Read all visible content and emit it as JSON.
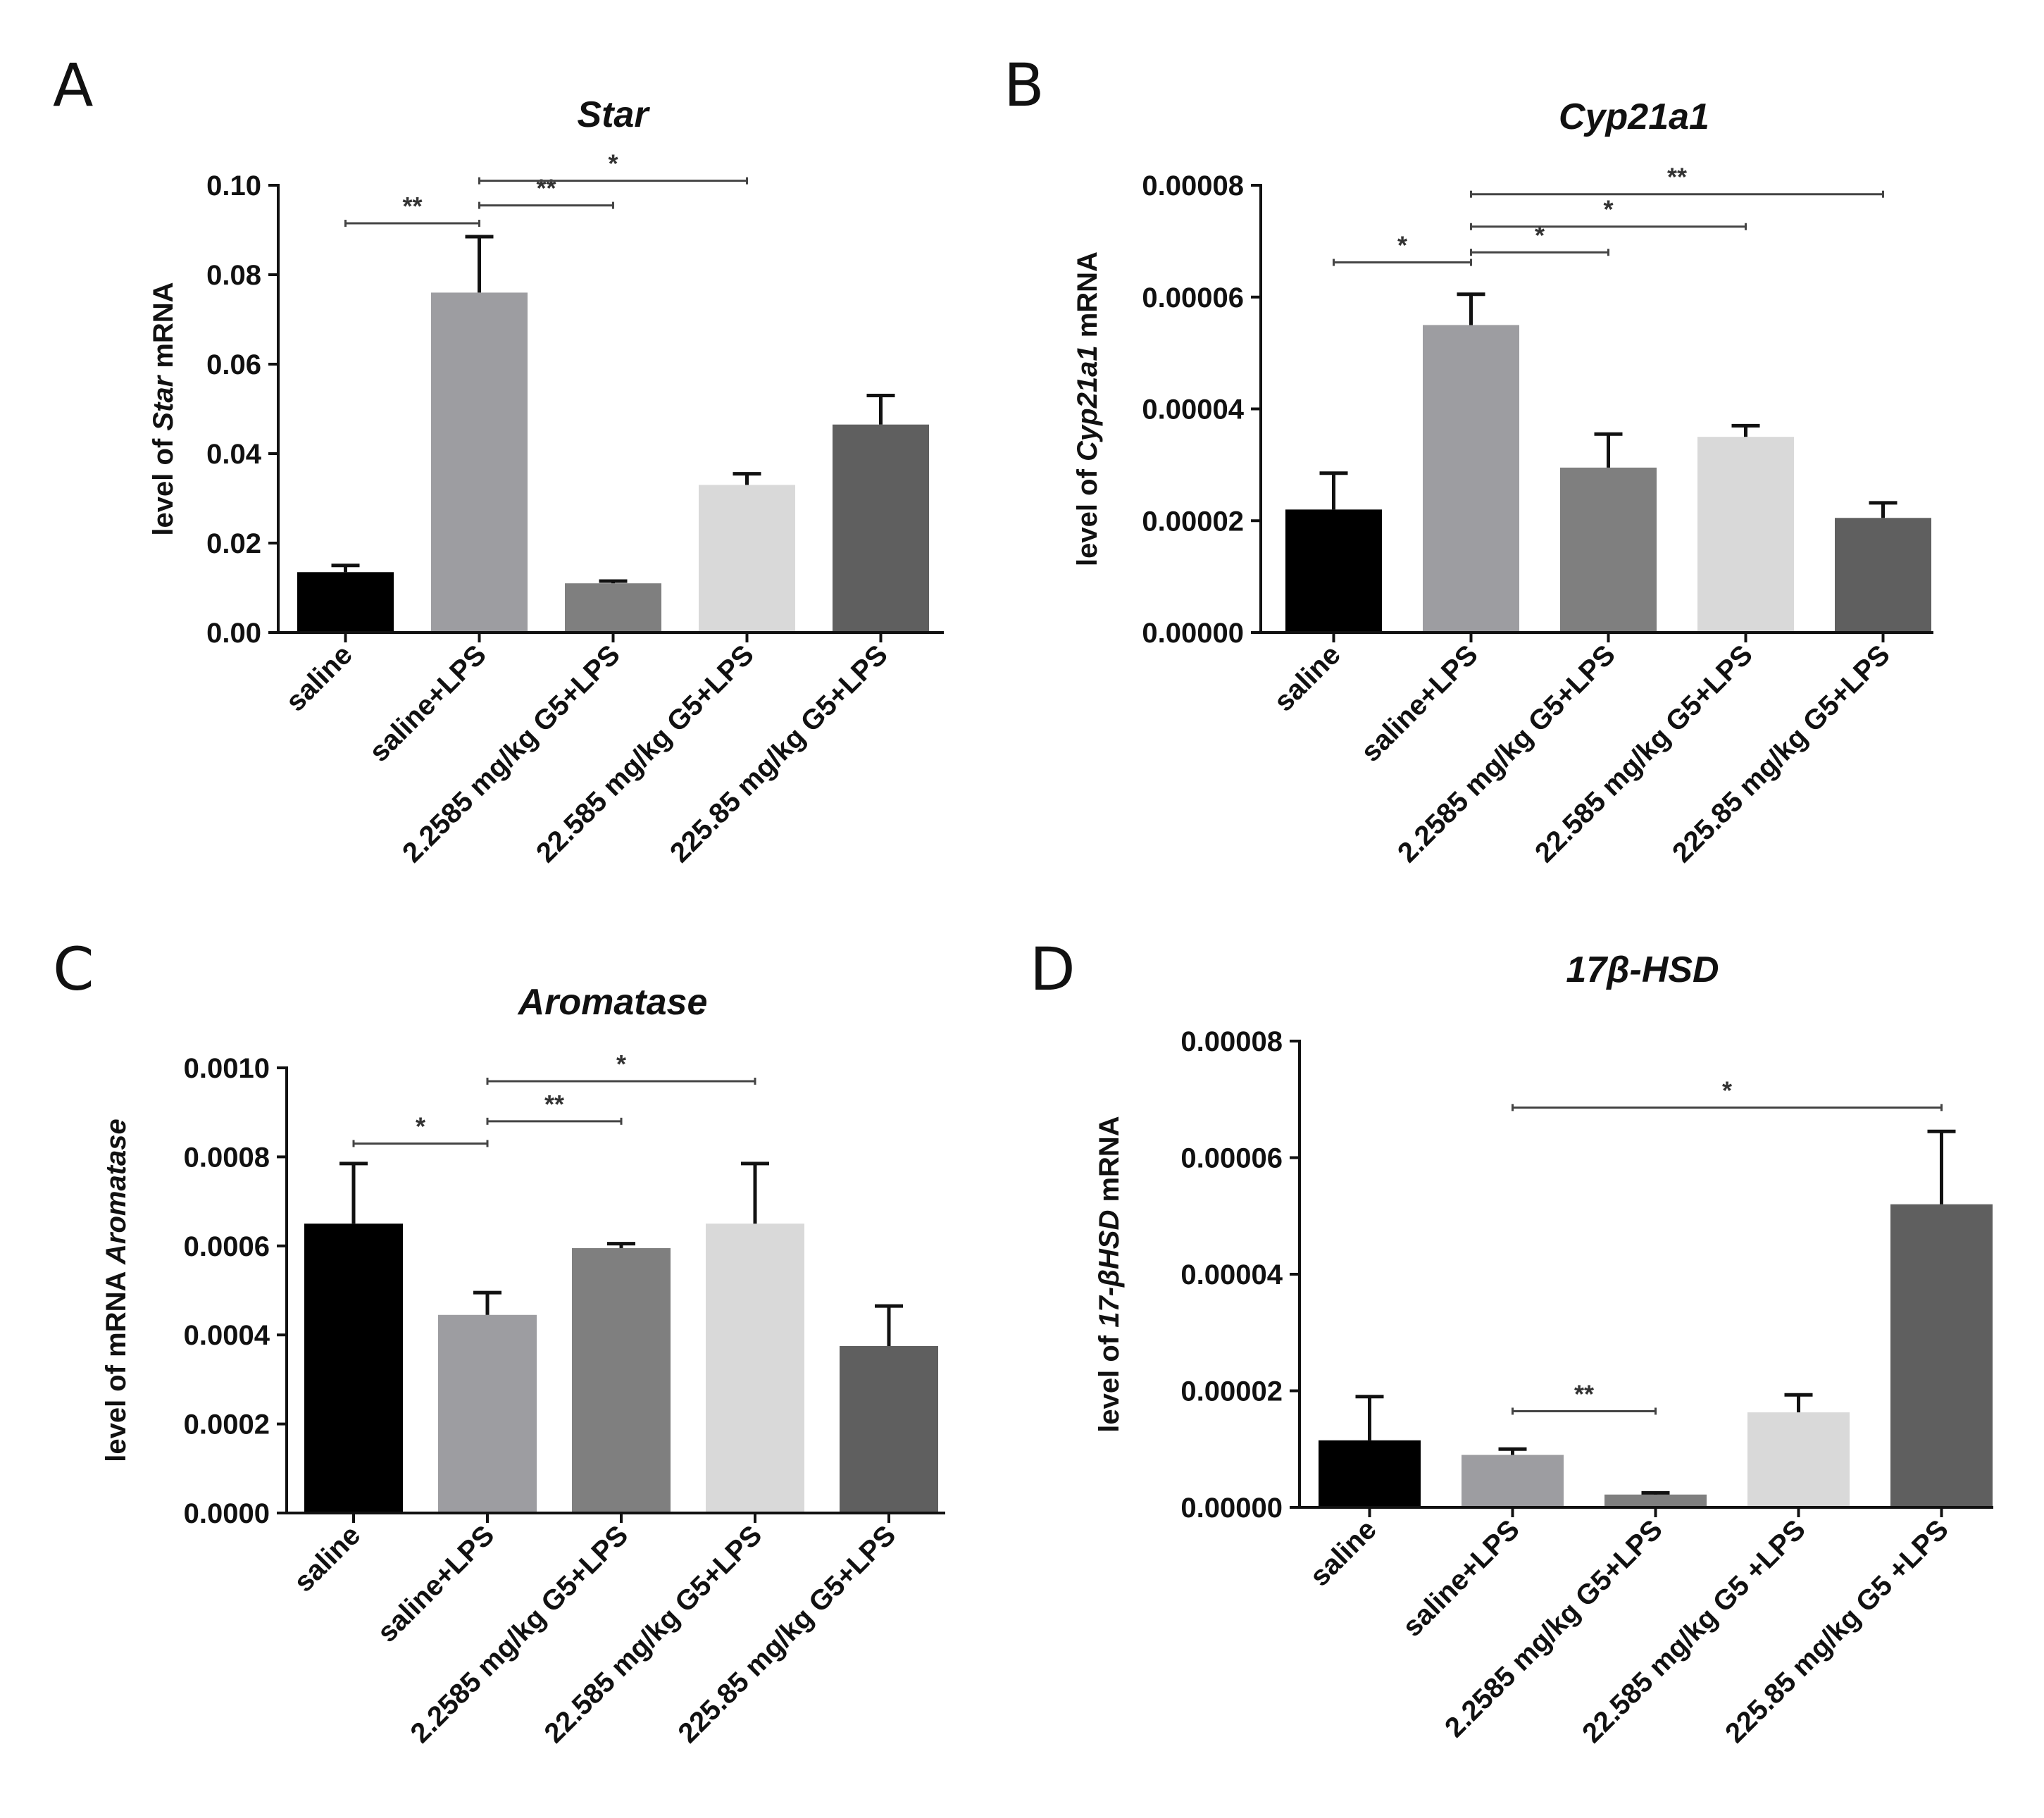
{
  "chart_data": [
    {
      "panel": "A",
      "type": "bar",
      "title": "Star",
      "ylabel_parts": [
        {
          "text": "level of ",
          "italic": false
        },
        {
          "text": "Star",
          "italic": true
        },
        {
          "text": " mRNA",
          "italic": false
        }
      ],
      "ylim": [
        0,
        0.1
      ],
      "yticks": [
        0.0,
        0.02,
        0.04,
        0.06,
        0.08,
        0.1
      ],
      "ytick_labels": [
        "0.00",
        "0.02",
        "0.04",
        "0.06",
        "0.08",
        "0.10"
      ],
      "categories": [
        "saline",
        "saline+LPS",
        "2.2585 mg/kg G5+LPS",
        "22.585 mg/kg G5+LPS",
        "225.85 mg/kg G5+LPS"
      ],
      "values": [
        0.0135,
        0.076,
        0.011,
        0.033,
        0.0465
      ],
      "errors": [
        0.0015,
        0.0125,
        0.0005,
        0.0025,
        0.0065
      ],
      "bar_colors": [
        "#000000",
        "#9d9da1",
        "#7f7f7f",
        "#d9d9d9",
        "#5f5f5f"
      ],
      "significance": [
        {
          "from": 0,
          "to": 1,
          "label": "**",
          "y": 0.0915
        },
        {
          "from": 1,
          "to": 2,
          "label": "**",
          "y": 0.0955
        },
        {
          "from": 1,
          "to": 3,
          "label": "*",
          "y": 0.101
        }
      ]
    },
    {
      "panel": "B",
      "type": "bar",
      "title": "Cyp21a1",
      "ylabel_parts": [
        {
          "text": "level of ",
          "italic": false
        },
        {
          "text": "Cyp21a1",
          "italic": true
        },
        {
          "text": " mRNA",
          "italic": false
        }
      ],
      "ylim": [
        0,
        8e-05
      ],
      "yticks": [
        0,
        2e-05,
        4e-05,
        6e-05,
        8e-05
      ],
      "ytick_labels": [
        "0.00000",
        "0.00002",
        "0.00004",
        "0.00006",
        "0.00008"
      ],
      "categories": [
        "saline",
        "saline+LPS",
        "2.2585 mg/kg G5+LPS",
        "22.585 mg/kg G5+LPS",
        "225.85 mg/kg G5+LPS"
      ],
      "values": [
        2.2e-05,
        5.5e-05,
        2.95e-05,
        3.5e-05,
        2.05e-05
      ],
      "errors": [
        6.5e-06,
        5.5e-06,
        6e-06,
        2e-06,
        2.7e-06
      ],
      "bar_colors": [
        "#000000",
        "#9d9da1",
        "#7f7f7f",
        "#d9d9d9",
        "#5f5f5f"
      ],
      "significance": [
        {
          "from": 0,
          "to": 1,
          "label": "*",
          "y": 6.62e-05
        },
        {
          "from": 1,
          "to": 2,
          "label": "*",
          "y": 6.8e-05
        },
        {
          "from": 1,
          "to": 3,
          "label": "*",
          "y": 7.26e-05
        },
        {
          "from": 1,
          "to": 4,
          "label": "**",
          "y": 7.84e-05
        }
      ]
    },
    {
      "panel": "C",
      "type": "bar",
      "title": "Aromatase",
      "ylabel_parts": [
        {
          "text": "level of  mRNA ",
          "italic": false
        },
        {
          "text": "Aromatase",
          "italic": true
        }
      ],
      "ylim": [
        0,
        0.001
      ],
      "yticks": [
        0,
        0.0002,
        0.0004,
        0.0006,
        0.0008,
        0.001
      ],
      "ytick_labels": [
        "0.0000",
        "0.0002",
        "0.0004",
        "0.0006",
        "0.0008",
        "0.0010"
      ],
      "categories": [
        "saline",
        "saline+LPS",
        "2.2585 mg/kg G5+LPS",
        "22.585 mg/kg G5+LPS",
        "225.85 mg/kg G5+LPS"
      ],
      "values": [
        0.00065,
        0.000445,
        0.000595,
        0.00065,
        0.000375
      ],
      "errors": [
        0.000135,
        5e-05,
        1e-05,
        0.000135,
        9e-05
      ],
      "bar_colors": [
        "#000000",
        "#9d9da1",
        "#7f7f7f",
        "#d9d9d9",
        "#5f5f5f"
      ],
      "significance": [
        {
          "from": 0,
          "to": 1,
          "label": "*",
          "y": 0.00083
        },
        {
          "from": 1,
          "to": 2,
          "label": "**",
          "y": 0.00088
        },
        {
          "from": 1,
          "to": 3,
          "label": "*",
          "y": 0.00097
        }
      ]
    },
    {
      "panel": "D",
      "type": "bar",
      "title": "17β-HSD",
      "ylabel_parts": [
        {
          "text": "level of ",
          "italic": false
        },
        {
          "text": "17-βHSD",
          "italic": true
        },
        {
          "text": " mRNA",
          "italic": false
        }
      ],
      "ylim": [
        0,
        8e-05
      ],
      "yticks": [
        0,
        2e-05,
        4e-05,
        6e-05,
        8e-05
      ],
      "ytick_labels": [
        "0.00000",
        "0.00002",
        "0.00004",
        "0.00006",
        "0.00008"
      ],
      "categories": [
        "saline",
        "saline+LPS",
        "2.2585 mg/kg G5+LPS",
        "22.585 mg/kg G5 +LPS",
        "225.85 mg/kg G5  +LPS"
      ],
      "values": [
        1.15e-05,
        9e-06,
        2.2e-06,
        1.63e-05,
        5.2e-05
      ],
      "errors": [
        7.5e-06,
        1e-06,
        3e-07,
        3e-06,
        1.25e-05
      ],
      "bar_colors": [
        "#000000",
        "#9d9da1",
        "#7f7f7f",
        "#d9d9d9",
        "#5f5f5f"
      ],
      "significance": [
        {
          "from": 1,
          "to": 2,
          "label": "**",
          "y": 1.65e-05
        },
        {
          "from": 1,
          "to": 4,
          "label": "*",
          "y": 6.86e-05
        }
      ]
    }
  ]
}
